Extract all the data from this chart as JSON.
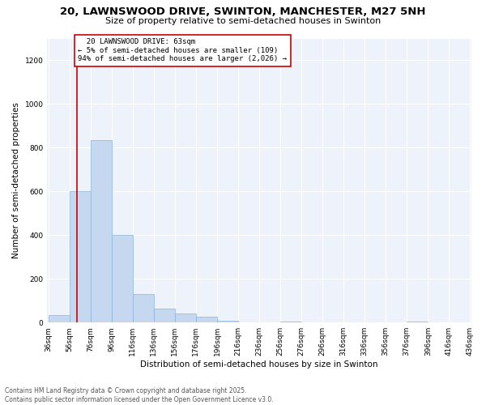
{
  "title_line1": "20, LAWNSWOOD DRIVE, SWINTON, MANCHESTER, M27 5NH",
  "title_line2": "Size of property relative to semi-detached houses in Swinton",
  "xlabel": "Distribution of semi-detached houses by size in Swinton",
  "ylabel": "Number of semi-detached properties",
  "bar_color": "#c5d8f0",
  "bar_edge_color": "#8ab4d8",
  "annotation_box_color": "#cc0000",
  "vline_color": "#cc0000",
  "background_color": "#eef2fa",
  "bins": [
    36,
    56,
    76,
    96,
    116,
    136,
    156,
    176,
    196,
    216,
    236,
    256,
    276,
    296,
    316,
    336,
    356,
    376,
    396,
    416,
    436
  ],
  "values": [
    35,
    600,
    835,
    400,
    130,
    65,
    40,
    25,
    10,
    0,
    0,
    5,
    0,
    0,
    0,
    0,
    0,
    5,
    0,
    0
  ],
  "property_size": 63,
  "property_label": "20 LAWNSWOOD DRIVE: 63sqm",
  "pct_smaller": 5,
  "count_smaller": 109,
  "pct_larger": 94,
  "count_larger": 2026,
  "ylim": [
    0,
    1300
  ],
  "yticks": [
    0,
    200,
    400,
    600,
    800,
    1000,
    1200
  ],
  "footer_line1": "Contains HM Land Registry data © Crown copyright and database right 2025.",
  "footer_line2": "Contains public sector information licensed under the Open Government Licence v3.0.",
  "title_fontsize": 9.5,
  "subtitle_fontsize": 8,
  "axis_label_fontsize": 7.5,
  "tick_fontsize": 6.5,
  "annot_fontsize": 6.5,
  "footer_fontsize": 5.5
}
